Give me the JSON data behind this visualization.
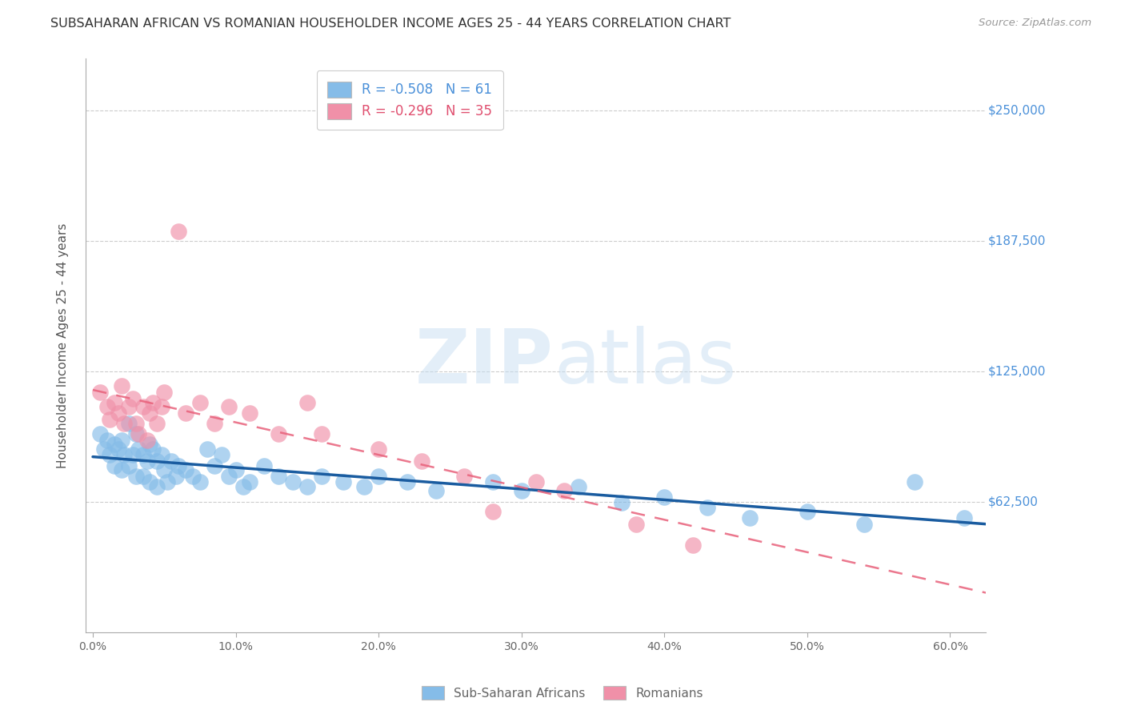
{
  "title": "SUBSAHARAN AFRICAN VS ROMANIAN HOUSEHOLDER INCOME AGES 25 - 44 YEARS CORRELATION CHART",
  "source": "Source: ZipAtlas.com",
  "ylabel": "Householder Income Ages 25 - 44 years",
  "xlabel_ticks": [
    "0.0%",
    "10.0%",
    "20.0%",
    "30.0%",
    "40.0%",
    "50.0%",
    "60.0%"
  ],
  "xlabel_vals": [
    0.0,
    0.1,
    0.2,
    0.3,
    0.4,
    0.5,
    0.6
  ],
  "ytick_labels": [
    "$62,500",
    "$125,000",
    "$187,500",
    "$250,000"
  ],
  "ytick_vals": [
    62500,
    125000,
    187500,
    250000
  ],
  "ylim": [
    0,
    275000
  ],
  "xlim": [
    -0.005,
    0.625
  ],
  "legend_line1": "R = -0.508   N = 61",
  "legend_line2": "R = -0.296   N = 35",
  "blue_color": "#85BCE8",
  "pink_color": "#F090A8",
  "blue_line_color": "#1A5CA0",
  "pink_line_color": "#E8607A",
  "watermark_zip": "ZIP",
  "watermark_atlas": "atlas",
  "blue_scatter_x": [
    0.005,
    0.008,
    0.01,
    0.012,
    0.015,
    0.015,
    0.018,
    0.02,
    0.02,
    0.022,
    0.025,
    0.025,
    0.028,
    0.03,
    0.03,
    0.032,
    0.035,
    0.035,
    0.038,
    0.04,
    0.04,
    0.042,
    0.045,
    0.045,
    0.048,
    0.05,
    0.052,
    0.055,
    0.058,
    0.06,
    0.065,
    0.07,
    0.075,
    0.08,
    0.085,
    0.09,
    0.095,
    0.1,
    0.105,
    0.11,
    0.12,
    0.13,
    0.14,
    0.15,
    0.16,
    0.175,
    0.19,
    0.2,
    0.22,
    0.24,
    0.28,
    0.3,
    0.34,
    0.37,
    0.4,
    0.43,
    0.46,
    0.5,
    0.54,
    0.575,
    0.61
  ],
  "blue_scatter_y": [
    95000,
    88000,
    92000,
    85000,
    90000,
    80000,
    88000,
    92000,
    78000,
    85000,
    100000,
    80000,
    85000,
    95000,
    75000,
    88000,
    85000,
    75000,
    82000,
    90000,
    72000,
    88000,
    82000,
    70000,
    85000,
    78000,
    72000,
    82000,
    75000,
    80000,
    78000,
    75000,
    72000,
    88000,
    80000,
    85000,
    75000,
    78000,
    70000,
    72000,
    80000,
    75000,
    72000,
    70000,
    75000,
    72000,
    70000,
    75000,
    72000,
    68000,
    72000,
    68000,
    70000,
    62000,
    65000,
    60000,
    55000,
    58000,
    52000,
    72000,
    55000
  ],
  "pink_scatter_x": [
    0.005,
    0.01,
    0.012,
    0.015,
    0.018,
    0.02,
    0.022,
    0.025,
    0.028,
    0.03,
    0.032,
    0.035,
    0.038,
    0.04,
    0.042,
    0.045,
    0.048,
    0.05,
    0.06,
    0.065,
    0.075,
    0.085,
    0.095,
    0.11,
    0.13,
    0.15,
    0.16,
    0.2,
    0.23,
    0.26,
    0.28,
    0.31,
    0.33,
    0.38,
    0.42
  ],
  "pink_scatter_y": [
    115000,
    108000,
    102000,
    110000,
    105000,
    118000,
    100000,
    108000,
    112000,
    100000,
    95000,
    108000,
    92000,
    105000,
    110000,
    100000,
    108000,
    115000,
    192000,
    105000,
    110000,
    100000,
    108000,
    105000,
    95000,
    110000,
    95000,
    88000,
    82000,
    75000,
    58000,
    72000,
    68000,
    52000,
    42000
  ]
}
